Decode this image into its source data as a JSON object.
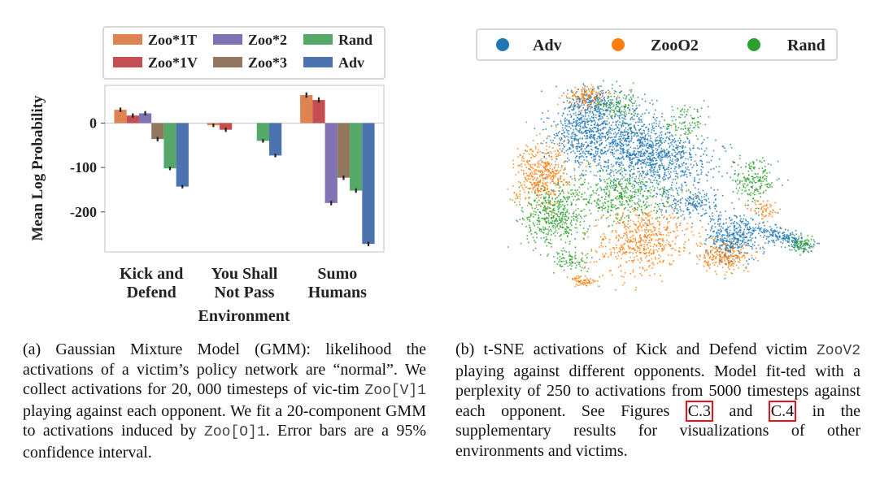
{
  "chart_data": [
    {
      "type": "bar",
      "panel": "a",
      "xlabel": "Environment",
      "ylabel": "Mean Log Probability",
      "ylim": [
        -290,
        85
      ],
      "yticks": [
        0,
        -100,
        -200
      ],
      "ytick_labels": [
        "0",
        "-100",
        "-200"
      ],
      "grid": false,
      "legend_position": "top",
      "categories": [
        {
          "line1": "Kick and",
          "line2": "Defend"
        },
        {
          "line1": "You Shall",
          "line2": "Not Pass"
        },
        {
          "line1": "Sumo",
          "line2": "Humans"
        }
      ],
      "series": [
        {
          "name": "Zoo*1T",
          "color": "#dd8452",
          "values": [
            30,
            -5,
            null
          ],
          "ci": [
            5,
            4,
            null
          ]
        },
        {
          "name": "Zoo*1V",
          "color": "#c44e52",
          "values": [
            17,
            -15,
            null
          ],
          "ci": [
            5,
            5,
            null
          ]
        },
        {
          "name": "Zoo*2",
          "color": "#8172b3",
          "values": [
            22,
            null,
            -180
          ],
          "ci": [
            5,
            null,
            5
          ]
        },
        {
          "name": "Zoo*3",
          "color": "#937860",
          "values": [
            -36,
            null,
            -123
          ],
          "ci": [
            5,
            null,
            5
          ]
        },
        {
          "name": "Rand",
          "color": "#55a868",
          "values": [
            -102,
            -40,
            -152
          ],
          "ci": [
            4,
            4,
            5
          ]
        },
        {
          "name": "Adv",
          "color": "#4c72b0",
          "values": [
            -143,
            -73,
            -272
          ],
          "ci": [
            4,
            4,
            5
          ]
        }
      ],
      "extra_bars": [
        {
          "category_index": 2,
          "slot": 0,
          "color": "#dd8452",
          "value": 63,
          "ci": 6
        },
        {
          "category_index": 2,
          "slot": 1,
          "color": "#c44e52",
          "value": 52,
          "ci": 6
        }
      ]
    },
    {
      "type": "scatter",
      "panel": "b",
      "legend_position": "top",
      "series": [
        {
          "name": "Adv",
          "color": "#1f77b4"
        },
        {
          "name": "ZooO2",
          "color": "#ff7f0e"
        },
        {
          "name": "Rand",
          "color": "#2ca02c"
        }
      ]
    }
  ],
  "caption_a": {
    "text": "(a) Gaussian Mixture Model (GMM): likelihood the activations of a victim’s policy network are “normal”. We collect activations for 20, 000 timesteps of vic-tim",
    "code1": "Zoo[V]1",
    "text2": "playing against each opponent. We fit a 20-component GMM to activations induced by",
    "code2": "Zoo[O]1",
    "text3": ". Error bars are a 95% confidence interval."
  },
  "caption_b": {
    "text": "(b) t-SNE activations of Kick and Defend victim",
    "code1": "ZooV2",
    "text2": "playing against different opponents. Model fit-ted with a perplexity of 250 to activations from 5000 timesteps against each opponent. See Figures",
    "ref1": "C.3",
    "text3": "and",
    "ref2": "C.4",
    "text4": "in the supplementary results for visualizations of other environments and victims."
  }
}
